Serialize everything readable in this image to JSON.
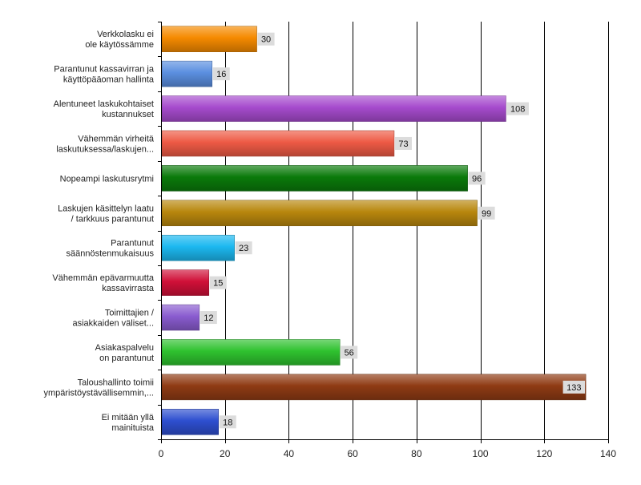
{
  "chart_data": {
    "type": "bar",
    "orientation": "horizontal",
    "categories": [
      "Verkkolasku ei\nole käytössämme",
      "Parantunut kassavirran ja\nkäyttöpääoman hallinta",
      "Alentuneet laskukohtaiset\nkustannukset",
      "Vähemmän virheitä\nlaskutuksessa/laskujen...",
      "Nopeampi laskutusrytmi",
      "Laskujen käsittelyn laatu\n/ tarkkuus parantunut",
      "Parantunut\nsäännöstenmukaisuus",
      "Vähemmän epävarmuutta\nkassavirrasta",
      "Toimittajien /\nasiakkaiden väliset...",
      "Asiakaspalvelu\non parantunut",
      "Taloushallinto toimii\nympäristöystävällisemmin,...",
      "Ei mitään yllä\nmainituista"
    ],
    "values": [
      30,
      16,
      108,
      73,
      96,
      99,
      23,
      15,
      12,
      56,
      133,
      18
    ],
    "colors": [
      "#f58a00",
      "#5b8fe0",
      "#a64bcd",
      "#ee5a45",
      "#0a7a0a",
      "#b8870d",
      "#1cb8f0",
      "#d01038",
      "#8a5cd0",
      "#2fc22f",
      "#8f3b14",
      "#2e4fd0"
    ],
    "xlim": [
      0,
      140
    ],
    "xticks": [
      0,
      20,
      40,
      60,
      80,
      100,
      120,
      140
    ],
    "grid": true,
    "legend": "none",
    "title": "",
    "xlabel": "",
    "ylabel": ""
  }
}
